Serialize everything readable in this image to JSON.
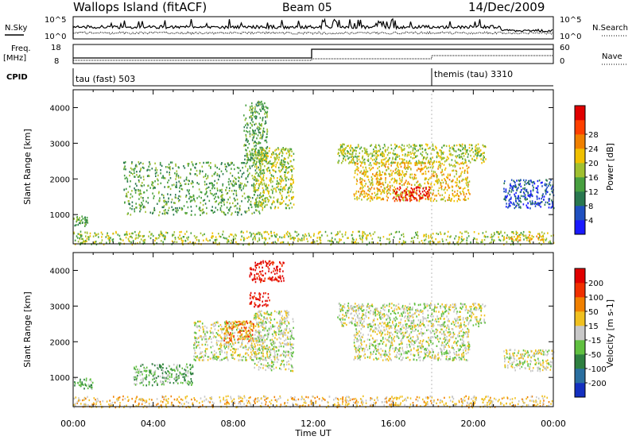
{
  "header": {
    "site_title": "Wallops Island (fitACF)",
    "beam": "Beam 05",
    "date": "14/Dec/2009"
  },
  "top_panels": {
    "nsky_label": "N.Sky",
    "nsky_ticks": [
      "10^5",
      "10^0"
    ],
    "nsearch_label": "N.Search",
    "nsearch_ticks": [
      "10^5",
      "10^0"
    ],
    "freq_label": "Freq.",
    "freq_unit": "[MHz]",
    "freq_ticks": [
      "18",
      "8"
    ],
    "nave_label": "Nave",
    "nave_ticks": [
      "60",
      "0"
    ],
    "cpid_label": "CPID",
    "cpid_segments": [
      {
        "text": "tau (fast) 503",
        "start_hour": 0
      },
      {
        "text": "themis (tau) 3310",
        "start_hour": 18
      }
    ]
  },
  "chart_data": [
    {
      "type": "heatmap",
      "title": "",
      "xlabel": "Time UT",
      "ylabel": "Slant Range [km]",
      "xlim": [
        0,
        24
      ],
      "ylim": [
        180,
        4500
      ],
      "x_ticks": [
        "00:00",
        "04:00",
        "08:00",
        "12:00",
        "16:00",
        "20:00",
        "00:00"
      ],
      "y_ticks": [
        1000,
        2000,
        3000,
        4000
      ],
      "colorbar": {
        "label": "Power [dB]",
        "ticks": [
          4,
          8,
          12,
          16,
          20,
          24,
          28
        ],
        "colors": [
          "#1a1aff",
          "#2050c0",
          "#2a7850",
          "#48a040",
          "#a0c030",
          "#f0c000",
          "#f08000",
          "#ff4000",
          "#e00000"
        ]
      },
      "regions": [
        {
          "x": [
            0.0,
            0.7
          ],
          "range": [
            700,
            1000
          ],
          "level": 3
        },
        {
          "x": [
            2.5,
            9.5
          ],
          "range": [
            1000,
            2500
          ],
          "level": 3
        },
        {
          "x": [
            8.5,
            9.7
          ],
          "range": [
            2500,
            4200
          ],
          "level": 3
        },
        {
          "x": [
            9.0,
            11.0
          ],
          "range": [
            1200,
            2900
          ],
          "level": 4
        },
        {
          "x": [
            13.2,
            20.6
          ],
          "range": [
            2450,
            3000
          ],
          "level": 4
        },
        {
          "x": [
            14.0,
            19.8
          ],
          "range": [
            1400,
            2500
          ],
          "level": 5
        },
        {
          "x": [
            16.0,
            17.8
          ],
          "range": [
            1400,
            1800
          ],
          "level": 8
        },
        {
          "x": [
            0.0,
            24.0
          ],
          "range": [
            180,
            550
          ],
          "level": 4
        },
        {
          "x": [
            21.5,
            23.5
          ],
          "range": [
            300,
            450
          ],
          "level": 5
        },
        {
          "x": [
            21.5,
            24.0
          ],
          "range": [
            1200,
            2000
          ],
          "level": 1
        }
      ]
    },
    {
      "type": "heatmap",
      "title": "",
      "xlabel": "Time UT",
      "ylabel": "Slant Range [km]",
      "xlim": [
        0,
        24
      ],
      "ylim": [
        180,
        4500
      ],
      "x_ticks": [
        "00:00",
        "04:00",
        "08:00",
        "12:00",
        "16:00",
        "20:00",
        "00:00"
      ],
      "y_ticks": [
        1000,
        2000,
        3000,
        4000
      ],
      "colorbar": {
        "label": "Velocity [m s-1]",
        "ticks": [
          "200",
          "100",
          "50",
          "15",
          "-15",
          "-50",
          "-100",
          "-200"
        ],
        "colors": [
          "#1430c0",
          "#2a6fa0",
          "#2e8040",
          "#60c040",
          "#c8c8c8",
          "#f0c020",
          "#f08000",
          "#f03000",
          "#e00000"
        ]
      },
      "regions": [
        {
          "x": [
            0.0,
            1.0
          ],
          "range": [
            700,
            1000
          ],
          "level": 3
        },
        {
          "x": [
            3.0,
            6.0
          ],
          "range": [
            800,
            1400
          ],
          "level": 3
        },
        {
          "x": [
            6.0,
            9.5
          ],
          "range": [
            1500,
            2600
          ],
          "level": 4
        },
        {
          "x": [
            7.5,
            9.0
          ],
          "range": [
            2000,
            2600
          ],
          "level": 6
        },
        {
          "x": [
            8.8,
            10.5
          ],
          "range": [
            3700,
            4300
          ],
          "level": 8
        },
        {
          "x": [
            8.8,
            9.8
          ],
          "range": [
            3000,
            3400
          ],
          "level": 8
        },
        {
          "x": [
            9.0,
            11.0
          ],
          "range": [
            1200,
            2900
          ],
          "level": 4
        },
        {
          "x": [
            13.2,
            20.6
          ],
          "range": [
            2450,
            3100
          ],
          "level": 4
        },
        {
          "x": [
            14.0,
            19.8
          ],
          "range": [
            1500,
            2500
          ],
          "level": 4
        },
        {
          "x": [
            0.0,
            24.0
          ],
          "range": [
            180,
            500
          ],
          "level": 5
        },
        {
          "x": [
            21.5,
            24.0
          ],
          "range": [
            1200,
            1800
          ],
          "level": 4
        }
      ]
    }
  ]
}
